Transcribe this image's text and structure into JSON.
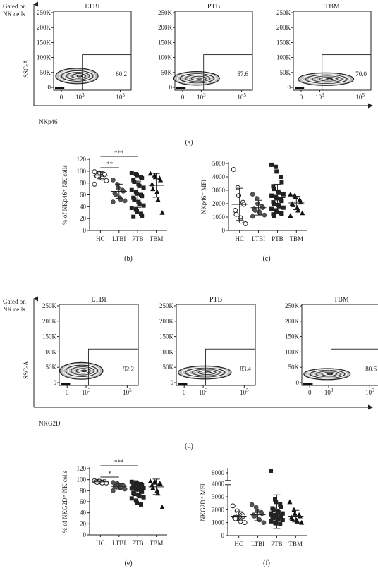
{
  "panel_labels": {
    "a": "(a)",
    "b": "(b)",
    "c": "(c)",
    "d": "(d)",
    "e": "(e)",
    "f": "(f)"
  },
  "gated_label": [
    "Gated on",
    "NK cells"
  ],
  "ssc_label": "SSC-A",
  "flow_rows": [
    {
      "xlabel": "NKp46",
      "plots": [
        {
          "title": "LTBI",
          "gate_pct": "60.2"
        },
        {
          "title": "PTB",
          "gate_pct": "57.6"
        },
        {
          "title": "TBM",
          "gate_pct": "70.0"
        }
      ]
    },
    {
      "xlabel": "NKG2D",
      "plots": [
        {
          "title": "LTBI",
          "gate_pct": "92.2"
        },
        {
          "title": "PTB",
          "gate_pct": "83.4"
        },
        {
          "title": "TBM",
          "gate_pct": "80.6"
        }
      ]
    }
  ],
  "flow_y_ticks": [
    "250K",
    "200K",
    "150K",
    "100K",
    "50K",
    "0"
  ],
  "flow_x_ticks": [
    "0",
    "10",
    "10"
  ],
  "flow_x_exp": [
    "",
    "3",
    "5"
  ],
  "chart_data": [
    {
      "type": "scatter",
      "panel": "b",
      "ylabel": "% of NKp46⁺ NK cells",
      "categories": [
        "HC",
        "LTBI",
        "PTB",
        "TBM"
      ],
      "ylim": [
        0,
        120
      ],
      "yticks": [
        "0",
        "20",
        "40",
        "60",
        "80",
        "100",
        "120"
      ],
      "significance": [
        {
          "from": "HC",
          "to": "LTBI",
          "label": "**"
        },
        {
          "from": "HC",
          "to": "PTB",
          "label": "***"
        }
      ],
      "series": [
        {
          "category": "HC",
          "marker": "circle-open",
          "mean": 93,
          "sd": 6,
          "values": [
            99,
            97,
            96,
            95,
            94,
            93,
            92,
            91,
            88,
            84,
            78
          ]
        },
        {
          "category": "LTBI",
          "marker": "circle",
          "mean": 66,
          "sd": 12,
          "values": [
            85,
            78,
            72,
            68,
            66,
            62,
            60,
            55,
            52,
            50,
            48
          ]
        },
        {
          "category": "PTB",
          "marker": "square",
          "mean": 61,
          "sd": 22,
          "values": [
            97,
            95,
            93,
            90,
            88,
            85,
            82,
            78,
            75,
            72,
            68,
            65,
            62,
            60,
            58,
            55,
            52,
            48,
            45,
            42,
            38,
            35,
            32,
            28,
            25,
            23
          ]
        },
        {
          "category": "TBM",
          "marker": "triangle",
          "mean": 76,
          "sd": 20,
          "values": [
            96,
            93,
            90,
            88,
            85,
            78,
            70,
            65,
            52,
            30
          ]
        }
      ]
    },
    {
      "type": "scatter",
      "panel": "c",
      "ylabel": "NKp46⁺ MFI",
      "categories": [
        "HC",
        "LTBI",
        "PTB",
        "TBM"
      ],
      "ylim": [
        0,
        5000
      ],
      "yticks": [
        "0",
        "1000",
        "2000",
        "3000",
        "4000",
        "5000"
      ],
      "series": [
        {
          "category": "HC",
          "marker": "circle-open",
          "mean": 1950,
          "sd": 1200,
          "values": [
            4550,
            3200,
            2600,
            2100,
            1950,
            1500,
            1200,
            950,
            700,
            500
          ]
        },
        {
          "category": "LTBI",
          "marker": "circle",
          "mean": 1700,
          "sd": 550,
          "values": [
            2700,
            2400,
            2000,
            1800,
            1700,
            1600,
            1500,
            1400,
            1300,
            1150,
            1050
          ]
        },
        {
          "category": "PTB",
          "marker": "square",
          "mean": 2450,
          "sd": 1000,
          "values": [
            4900,
            4750,
            4400,
            4000,
            3600,
            3300,
            3100,
            2900,
            2800,
            2700,
            2600,
            2500,
            2400,
            2300,
            2200,
            2100,
            2000,
            1900,
            1800,
            1700,
            1600,
            1500,
            1400,
            1300,
            1250,
            1200,
            1100
          ]
        },
        {
          "category": "TBM",
          "marker": "triangle",
          "mean": 2050,
          "sd": 500,
          "values": [
            2700,
            2600,
            2500,
            2300,
            2100,
            2000,
            1900,
            1700,
            1500,
            1300,
            1100
          ]
        }
      ]
    },
    {
      "type": "scatter",
      "panel": "e",
      "ylabel": "% of NKG2D⁺ NK cells",
      "categories": [
        "HC",
        "LTBI",
        "PTB",
        "TBM"
      ],
      "ylim": [
        0,
        120
      ],
      "yticks": [
        "0",
        "20",
        "40",
        "60",
        "80",
        "100",
        "120"
      ],
      "significance": [
        {
          "from": "HC",
          "to": "LTBI",
          "label": "*"
        },
        {
          "from": "HC",
          "to": "PTB",
          "label": "***"
        }
      ],
      "series": [
        {
          "category": "HC",
          "marker": "circle-open",
          "mean": 96,
          "sd": 2,
          "values": [
            98,
            97,
            97,
            96,
            96,
            96,
            95,
            95,
            94,
            94
          ]
        },
        {
          "category": "LTBI",
          "marker": "circle",
          "mean": 88,
          "sd": 5,
          "values": [
            95,
            93,
            91,
            90,
            89,
            88,
            87,
            86,
            85,
            83,
            80
          ]
        },
        {
          "category": "PTB",
          "marker": "square",
          "mean": 84,
          "sd": 11,
          "values": [
            96,
            95,
            93,
            92,
            90,
            89,
            88,
            87,
            86,
            85,
            84,
            83,
            82,
            80,
            78,
            76,
            74,
            72,
            70,
            68,
            66,
            62,
            58,
            55
          ]
        },
        {
          "category": "TBM",
          "marker": "triangle",
          "mean": 87,
          "sd": 14,
          "values": [
            97,
            96,
            95,
            93,
            92,
            90,
            85,
            80,
            75,
            50
          ]
        }
      ]
    },
    {
      "type": "scatter",
      "panel": "f",
      "ylabel": "NKG2D⁺ MFI",
      "categories": [
        "HC",
        "LTBI",
        "PTB",
        "TBM"
      ],
      "ylim": [
        0,
        8500
      ],
      "axis_break": [
        4000,
        7000
      ],
      "yticks": [
        "0",
        "1000",
        "2000",
        "3000",
        "4000",
        "8000"
      ],
      "series": [
        {
          "category": "HC",
          "marker": "circle-open",
          "mean": 1500,
          "sd": 350,
          "values": [
            2300,
            1900,
            1700,
            1600,
            1500,
            1400,
            1300,
            1200,
            1100,
            1000
          ]
        },
        {
          "category": "LTBI",
          "marker": "circle",
          "mean": 1600,
          "sd": 450,
          "values": [
            2400,
            2200,
            1900,
            1800,
            1700,
            1600,
            1500,
            1300,
            1200,
            1000
          ]
        },
        {
          "category": "PTB",
          "marker": "square",
          "mean": 1850,
          "sd": 1300,
          "values": [
            8300,
            2800,
            2600,
            2400,
            2200,
            2100,
            2000,
            1900,
            1800,
            1700,
            1650,
            1600,
            1550,
            1500,
            1450,
            1400,
            1350,
            1300,
            1250,
            1200,
            1100,
            1000,
            950,
            900
          ]
        },
        {
          "category": "TBM",
          "marker": "triangle",
          "mean": 1500,
          "sd": 450,
          "values": [
            2600,
            2000,
            1700,
            1600,
            1500,
            1400,
            1300,
            1200,
            1100,
            1000
          ]
        }
      ]
    }
  ]
}
